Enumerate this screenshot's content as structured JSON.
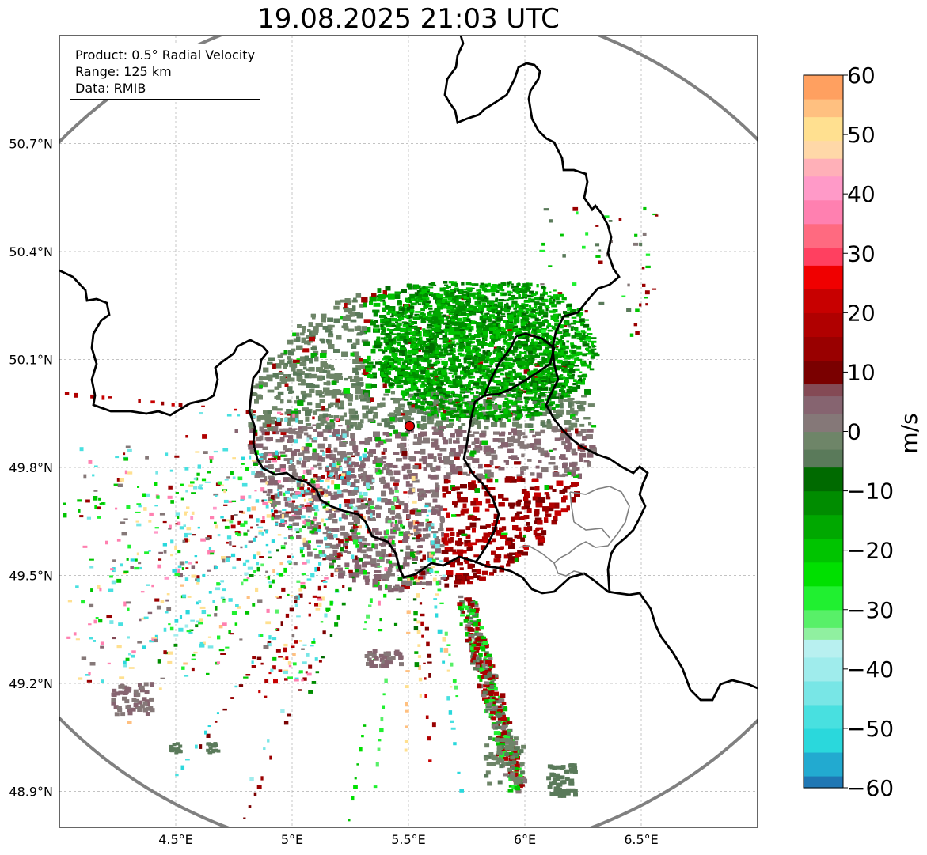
{
  "map": {
    "title": "19.08.2025 21:03 UTC",
    "info": {
      "product": "Product: 0.5° Radial Velocity",
      "range": "Range: 125 km",
      "data": "Data: RMIB"
    },
    "extent": {
      "lon": [
        4.0,
        7.0
      ],
      "lat": [
        48.8,
        51.0
      ]
    },
    "lon_ticks": [
      {
        "value": 4.5,
        "label": "4.5°E"
      },
      {
        "value": 5.0,
        "label": "5°E"
      },
      {
        "value": 5.5,
        "label": "5.5°E"
      },
      {
        "value": 6.0,
        "label": "6°E"
      },
      {
        "value": 6.5,
        "label": "6.5°E"
      }
    ],
    "lat_ticks": [
      {
        "value": 50.7,
        "label": "50.7°N"
      },
      {
        "value": 50.4,
        "label": "50.4°N"
      },
      {
        "value": 50.1,
        "label": "50.1°N"
      },
      {
        "value": 49.8,
        "label": "49.8°N"
      },
      {
        "value": 49.5,
        "label": "49.5°N"
      },
      {
        "value": 49.2,
        "label": "49.2°N"
      },
      {
        "value": 48.9,
        "label": "48.9°N"
      }
    ],
    "radar_site": {
      "lon": 5.505,
      "lat": 49.915
    },
    "range_ring_km": 125
  },
  "colorbar": {
    "label": "m/s",
    "min": -60,
    "max": 60,
    "ticks": [
      {
        "value": 60,
        "label": "60"
      },
      {
        "value": 50,
        "label": "50"
      },
      {
        "value": 40,
        "label": "40"
      },
      {
        "value": 30,
        "label": "30"
      },
      {
        "value": 20,
        "label": "20"
      },
      {
        "value": 10,
        "label": "10"
      },
      {
        "value": 0,
        "label": "0"
      },
      {
        "value": -10,
        "label": "−10"
      },
      {
        "value": -20,
        "label": "−20"
      },
      {
        "value": -30,
        "label": "−30"
      },
      {
        "value": -40,
        "label": "−40"
      },
      {
        "value": -50,
        "label": "−50"
      },
      {
        "value": -60,
        "label": "−60"
      }
    ],
    "stops": [
      {
        "from": -60,
        "to": -58,
        "color": "#1f77b4"
      },
      {
        "from": -58,
        "to": -54,
        "color": "#22aad0"
      },
      {
        "from": -54,
        "to": -50,
        "color": "#2ad8dc"
      },
      {
        "from": -50,
        "to": -46,
        "color": "#48e0e0"
      },
      {
        "from": -46,
        "to": -42,
        "color": "#78e6e6"
      },
      {
        "from": -42,
        "to": -38,
        "color": "#9fecec"
      },
      {
        "from": -38,
        "to": -35,
        "color": "#b8f0f0"
      },
      {
        "from": -35,
        "to": -33,
        "color": "#90f0a0"
      },
      {
        "from": -33,
        "to": -30,
        "color": "#58f068"
      },
      {
        "from": -30,
        "to": -26,
        "color": "#20f030"
      },
      {
        "from": -26,
        "to": -22,
        "color": "#00e000"
      },
      {
        "from": -22,
        "to": -18,
        "color": "#00c400"
      },
      {
        "from": -18,
        "to": -14,
        "color": "#00a800"
      },
      {
        "from": -14,
        "to": -10,
        "color": "#008c00"
      },
      {
        "from": -10,
        "to": -6,
        "color": "#006a00"
      },
      {
        "from": -6,
        "to": -3,
        "color": "#5a7a5a"
      },
      {
        "from": -3,
        "to": 0,
        "color": "#6e8568"
      },
      {
        "from": 0,
        "to": 3,
        "color": "#857878"
      },
      {
        "from": 3,
        "to": 6,
        "color": "#866470"
      },
      {
        "from": 6,
        "to": 8,
        "color": "#844a55"
      },
      {
        "from": 8,
        "to": 12,
        "color": "#7a0000"
      },
      {
        "from": 12,
        "to": 16,
        "color": "#990000"
      },
      {
        "from": 16,
        "to": 20,
        "color": "#b00000"
      },
      {
        "from": 20,
        "to": 24,
        "color": "#c80000"
      },
      {
        "from": 24,
        "to": 28,
        "color": "#f00000"
      },
      {
        "from": 28,
        "to": 31,
        "color": "#ff4060"
      },
      {
        "from": 31,
        "to": 35,
        "color": "#ff6a80"
      },
      {
        "from": 35,
        "to": 39,
        "color": "#ff80b0"
      },
      {
        "from": 39,
        "to": 43,
        "color": "#ff9ac8"
      },
      {
        "from": 43,
        "to": 46,
        "color": "#ffb0b8"
      },
      {
        "from": 46,
        "to": 49,
        "color": "#ffd8a8"
      },
      {
        "from": 49,
        "to": 53,
        "color": "#ffe090"
      },
      {
        "from": 53,
        "to": 56,
        "color": "#ffc080"
      },
      {
        "from": 56,
        "to": 60,
        "color": "#ffa060"
      }
    ]
  }
}
